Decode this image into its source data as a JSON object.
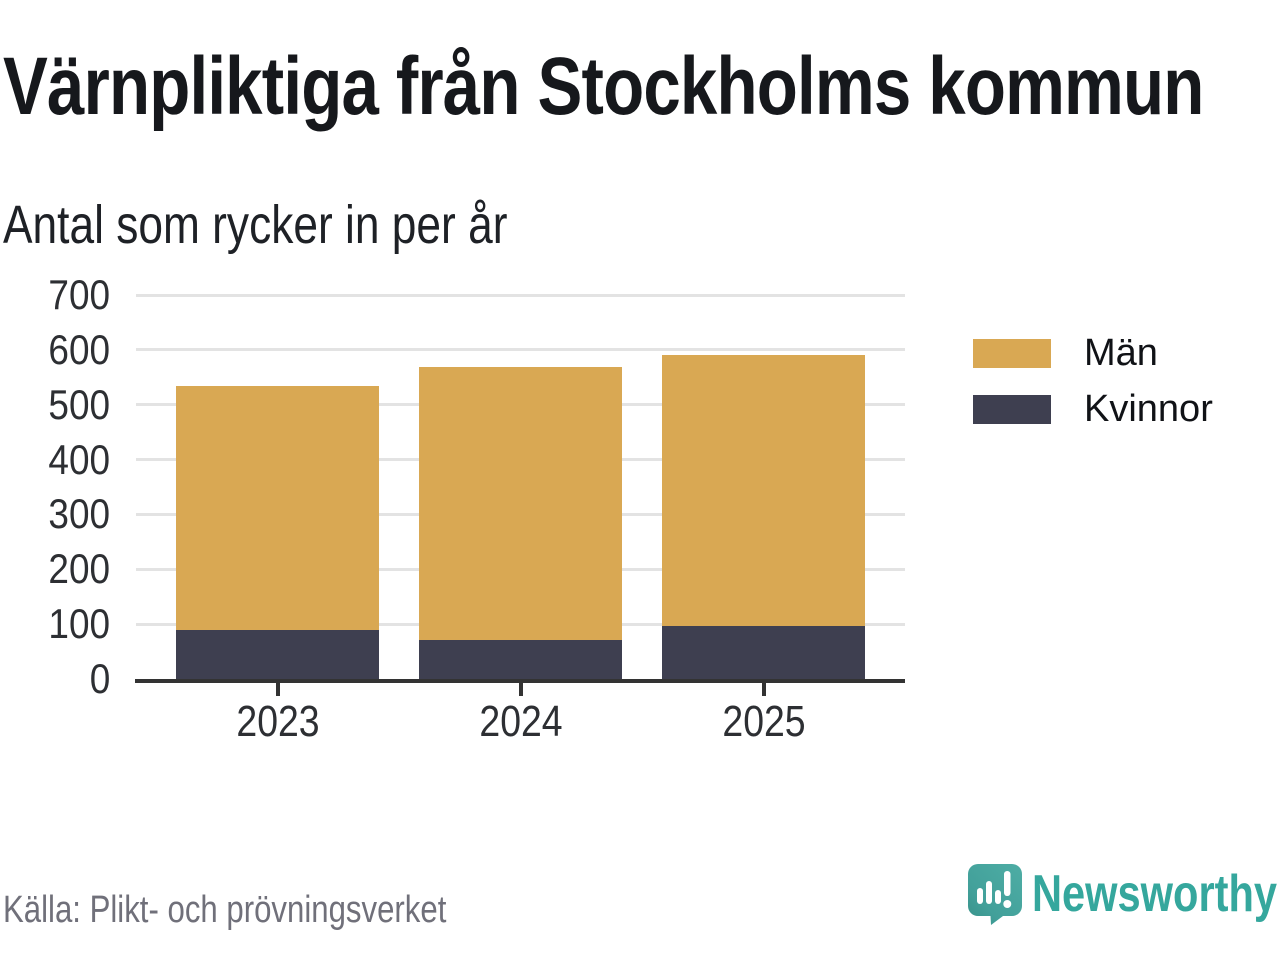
{
  "title": "Värnpliktiga från Stockholms kommun",
  "subtitle": "Antal som rycker in per år",
  "source": "Källa: Plikt- och prövningsverket",
  "brand": {
    "name": "Newsworthy",
    "color": "#35a79d",
    "icon": "newsworthy-speech-bubble-barchart-icon"
  },
  "colors": {
    "men": "#d9a853",
    "women": "#3e3f50",
    "gridline": "#e3e3e3",
    "axis": "#333333",
    "title_text": "#16181c",
    "tick_text": "#2d2f33",
    "source_text": "#70707a"
  },
  "chart_data": {
    "type": "bar",
    "stacked": true,
    "title": "Värnpliktiga från Stockholms kommun",
    "subtitle": "Antal som rycker in per år",
    "categories": [
      "2023",
      "2024",
      "2025"
    ],
    "series": [
      {
        "name": "Kvinnor",
        "color": "#3e3f50",
        "values": [
          90,
          72,
          96
        ]
      },
      {
        "name": "Män",
        "color": "#d9a853",
        "values": [
          445,
          497,
          494
        ]
      }
    ],
    "totals": [
      535,
      569,
      590
    ],
    "ylim": [
      0,
      700
    ],
    "yticks": [
      0,
      100,
      200,
      300,
      400,
      500,
      600,
      700
    ],
    "xlabel": "",
    "ylabel": "",
    "grid": "horizontal",
    "legend": [
      "Män",
      "Kvinnor"
    ],
    "legend_position": "right"
  }
}
